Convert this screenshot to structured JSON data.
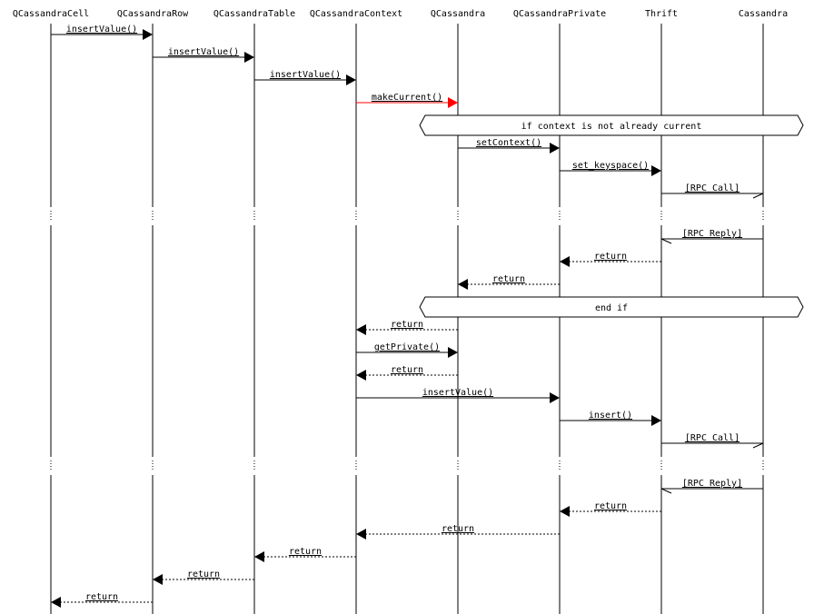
{
  "diagram": {
    "participants": [
      {
        "id": "cell",
        "label": "QCassandraCell"
      },
      {
        "id": "row",
        "label": "QCassandraRow"
      },
      {
        "id": "table",
        "label": "QCassandraTable"
      },
      {
        "id": "context",
        "label": "QCassandraContext"
      },
      {
        "id": "qc",
        "label": "QCassandra"
      },
      {
        "id": "priv",
        "label": "QCassandraPrivate"
      },
      {
        "id": "thrift",
        "label": "Thrift"
      },
      {
        "id": "cass",
        "label": "Cassandra"
      }
    ],
    "messages": [
      {
        "from": "cell",
        "to": "row",
        "label": "insertValue()",
        "kind": "call"
      },
      {
        "from": "row",
        "to": "table",
        "label": "insertValue()",
        "kind": "call"
      },
      {
        "from": "table",
        "to": "context",
        "label": "insertValue()",
        "kind": "call"
      },
      {
        "from": "context",
        "to": "qc",
        "label": "makeCurrent()",
        "kind": "call",
        "color": "#ff0000"
      },
      {
        "kind": "block",
        "label": "if context is not already current"
      },
      {
        "from": "qc",
        "to": "priv",
        "label": "setContext()",
        "kind": "call"
      },
      {
        "from": "priv",
        "to": "thrift",
        "label": "set_keyspace()",
        "kind": "call"
      },
      {
        "from": "thrift",
        "to": "cass",
        "label": "[RPC Call]",
        "kind": "async"
      },
      {
        "kind": "gap"
      },
      {
        "from": "cass",
        "to": "thrift",
        "label": "[RPC Reply]",
        "kind": "async"
      },
      {
        "from": "thrift",
        "to": "priv",
        "label": "return",
        "kind": "return"
      },
      {
        "from": "priv",
        "to": "qc",
        "label": "return",
        "kind": "return"
      },
      {
        "kind": "block",
        "label": "end if"
      },
      {
        "from": "qc",
        "to": "context",
        "label": "return",
        "kind": "return"
      },
      {
        "from": "context",
        "to": "qc",
        "label": "getPrivate()",
        "kind": "call"
      },
      {
        "from": "qc",
        "to": "context",
        "label": "return",
        "kind": "return"
      },
      {
        "from": "context",
        "to": "priv",
        "label": "insertValue()",
        "kind": "call"
      },
      {
        "from": "priv",
        "to": "thrift",
        "label": "insert()",
        "kind": "call"
      },
      {
        "from": "thrift",
        "to": "cass",
        "label": "[RPC Call]",
        "kind": "async"
      },
      {
        "kind": "gap"
      },
      {
        "from": "cass",
        "to": "thrift",
        "label": "[RPC Reply]",
        "kind": "async"
      },
      {
        "from": "thrift",
        "to": "priv",
        "label": "return",
        "kind": "return"
      },
      {
        "from": "priv",
        "to": "context",
        "label": "return",
        "kind": "return"
      },
      {
        "from": "context",
        "to": "table",
        "label": "return",
        "kind": "return"
      },
      {
        "from": "table",
        "to": "row",
        "label": "return",
        "kind": "return"
      },
      {
        "from": "row",
        "to": "cell",
        "label": "return",
        "kind": "return"
      }
    ]
  }
}
